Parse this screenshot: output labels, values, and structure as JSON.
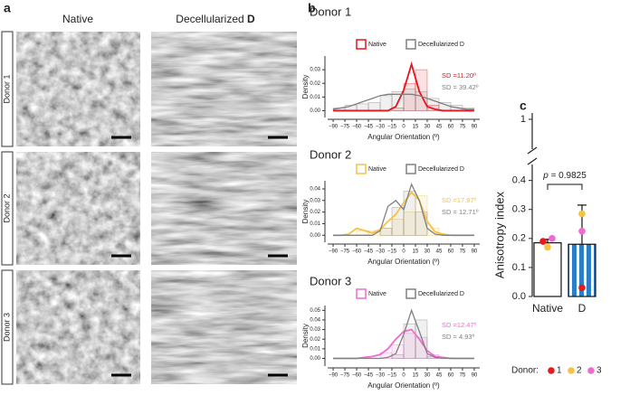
{
  "panel_labels": [
    "a",
    "b",
    "c"
  ],
  "panel_a": {
    "columns": [
      "Native",
      "Decellularized",
      "D"
    ],
    "rows": [
      "Donor 1",
      "Donor 2",
      "Donor 3"
    ]
  },
  "chart_data": [
    {
      "type": "density",
      "title": "Donor 1",
      "xlabel": "Angular Orientation (º)",
      "ylabel": "Density",
      "x": [
        -90,
        -80,
        -70,
        -60,
        -50,
        -40,
        -30,
        -20,
        -10,
        0,
        10,
        20,
        30,
        40,
        50,
        60,
        70,
        80,
        90
      ],
      "bins": [
        -90,
        -75,
        -60,
        -45,
        -30,
        -15,
        0,
        15,
        30,
        45,
        60,
        75,
        90
      ],
      "series": [
        {
          "name": "Native",
          "color": "#e8141c",
          "values": [
            0,
            0,
            0,
            0,
            0,
            0,
            0,
            0,
            0.003,
            0.015,
            0.034,
            0.014,
            0.003,
            0.001,
            0,
            0,
            0,
            0,
            0
          ],
          "hist": [
            0,
            0,
            0,
            0,
            0,
            0.002,
            0.02,
            0.03,
            0.004,
            0,
            0,
            0
          ]
        },
        {
          "name": "Decellularized D",
          "color": "#808080",
          "values": [
            0.001,
            0.002,
            0.003,
            0.005,
            0.007,
            0.009,
            0.011,
            0.012,
            0.012,
            0.012,
            0.012,
            0.011,
            0.009,
            0.007,
            0.005,
            0.003,
            0.002,
            0.001,
            0.001
          ],
          "hist": [
            0.002,
            0.004,
            0.005,
            0.006,
            0.011,
            0.014,
            0.016,
            0.014,
            0.009,
            0.006,
            0.004,
            0.002
          ]
        }
      ],
      "annotations": [
        {
          "text": "SD =11.20º",
          "color": "#e8141c"
        },
        {
          "text": "SD = 39.42º",
          "color": "#808080"
        }
      ],
      "xlim": [
        -97,
        97
      ],
      "ylim": [
        -0.005,
        0.04
      ],
      "xticks": [
        {
          "value": -90,
          "label": "−90"
        },
        {
          "value": -75,
          "label": "−75"
        },
        {
          "value": -60,
          "label": "−60"
        },
        {
          "value": -45,
          "label": "−45"
        },
        {
          "value": -30,
          "label": "−30"
        },
        {
          "value": -15,
          "label": "−15"
        },
        0,
        15,
        30,
        45,
        60,
        75,
        90
      ],
      "yticks": [
        {
          "value": 0,
          "label": "0.00"
        },
        {
          "value": 0.01,
          "label": "0.01"
        },
        {
          "value": 0.02,
          "label": "0.02"
        },
        {
          "value": 0.03,
          "label": "0.03"
        }
      ]
    },
    {
      "type": "density",
      "title": "Donor 2",
      "xlabel": "Angular Orientation (º)",
      "ylabel": "Density",
      "x": [
        -90,
        -80,
        -70,
        -60,
        -50,
        -40,
        -30,
        -20,
        -10,
        0,
        10,
        20,
        30,
        40,
        50,
        60,
        70,
        80,
        90
      ],
      "bins": [
        -90,
        -75,
        -60,
        -45,
        -30,
        -15,
        0,
        15,
        30,
        45,
        60,
        75,
        90
      ],
      "series": [
        {
          "name": "Native",
          "color": "#f5c242",
          "values": [
            0,
            0,
            0.001,
            0.006,
            0.004,
            0.002,
            0.005,
            0.012,
            0.018,
            0.028,
            0.037,
            0.03,
            0.012,
            0.003,
            0.001,
            0,
            0,
            0,
            0
          ],
          "hist": [
            0,
            0,
            0.004,
            0.004,
            0.006,
            0.014,
            0.02,
            0.034,
            0.006,
            0,
            0,
            0
          ]
        },
        {
          "name": "Decellularized D",
          "color": "#808080",
          "values": [
            0,
            0,
            0,
            0,
            0,
            0,
            0.004,
            0.025,
            0.03,
            0.022,
            0.044,
            0.03,
            0.006,
            0.001,
            0,
            0,
            0,
            0,
            0
          ],
          "hist": [
            0,
            0,
            0,
            0,
            0.006,
            0.024,
            0.038,
            0.02,
            0,
            0,
            0,
            0
          ]
        }
      ],
      "annotations": [
        {
          "text": "SD =17.97º",
          "color": "#f5c242"
        },
        {
          "text": "SD = 12.71º",
          "color": "#808080"
        }
      ],
      "xlim": [
        -97,
        97
      ],
      "ylim": [
        -0.006,
        0.047
      ],
      "xticks": [
        {
          "value": -90,
          "label": "−90"
        },
        {
          "value": -75,
          "label": "−75"
        },
        {
          "value": -60,
          "label": "−60"
        },
        {
          "value": -45,
          "label": "−45"
        },
        {
          "value": -30,
          "label": "−30"
        },
        {
          "value": -15,
          "label": "−15"
        },
        0,
        15,
        30,
        45,
        60,
        75,
        90
      ],
      "yticks": [
        {
          "value": 0,
          "label": "0.00"
        },
        {
          "value": 0.01,
          "label": "0.01"
        },
        {
          "value": 0.02,
          "label": "0.02"
        },
        {
          "value": 0.03,
          "label": "0.03"
        },
        {
          "value": 0.04,
          "label": "0.04"
        }
      ]
    },
    {
      "type": "density",
      "title": "Donor 3",
      "xlabel": "Angular Orientation (º)",
      "ylabel": "Density",
      "x": [
        -90,
        -80,
        -70,
        -60,
        -50,
        -40,
        -30,
        -20,
        -10,
        0,
        10,
        20,
        30,
        40,
        50,
        60,
        70,
        80,
        90
      ],
      "bins": [
        -90,
        -75,
        -60,
        -45,
        -30,
        -15,
        0,
        15,
        30,
        45,
        60,
        75,
        90
      ],
      "series": [
        {
          "name": "Native",
          "color": "#ef6bd0",
          "values": [
            0,
            0,
            0,
            0,
            0.001,
            0.002,
            0.004,
            0.01,
            0.02,
            0.028,
            0.03,
            0.02,
            0.008,
            0.002,
            0.001,
            0,
            0,
            0,
            0
          ],
          "hist": [
            0,
            0,
            0,
            0,
            0.006,
            0.014,
            0.026,
            0.022,
            0.004,
            0,
            0,
            0
          ]
        },
        {
          "name": "Decellularized D",
          "color": "#808080",
          "values": [
            0,
            0,
            0,
            0,
            0,
            0,
            0,
            0.001,
            0.005,
            0.025,
            0.05,
            0.028,
            0.005,
            0.001,
            0,
            0,
            0,
            0,
            0
          ],
          "hist": [
            0,
            0,
            0,
            0,
            0,
            0.004,
            0.036,
            0.04,
            0.002,
            0,
            0,
            0
          ]
        }
      ],
      "annotations": [
        {
          "text": "SD =12.47º",
          "color": "#ef6bd0"
        },
        {
          "text": "SD = 4.93º",
          "color": "#808080"
        }
      ],
      "xlim": [
        -97,
        97
      ],
      "ylim": [
        -0.008,
        0.055
      ],
      "xticks": [
        {
          "value": -90,
          "label": "−90"
        },
        {
          "value": -75,
          "label": "−75"
        },
        {
          "value": -60,
          "label": "−60"
        },
        {
          "value": -45,
          "label": "−45"
        },
        {
          "value": -30,
          "label": "−30"
        },
        {
          "value": -15,
          "label": "−15"
        },
        0,
        15,
        30,
        45,
        60,
        75,
        90
      ],
      "yticks": [
        {
          "value": 0,
          "label": "0.00"
        },
        {
          "value": 0.01,
          "label": "0.01"
        },
        {
          "value": 0.02,
          "label": "0.02"
        },
        {
          "value": 0.03,
          "label": "0.03"
        },
        {
          "value": 0.04,
          "label": "0.04"
        },
        {
          "value": 0.05,
          "label": "0.05"
        }
      ]
    },
    {
      "type": "bar",
      "ylabel": "Anisotropy index",
      "categories": [
        "Native",
        "D"
      ],
      "values": [
        0.185,
        0.18
      ],
      "errors": [
        0.012,
        0.135
      ],
      "colors": [
        "#ffffff",
        "#2a7fc8"
      ],
      "ylim": [
        0,
        0.43
      ],
      "yticks": [
        {
          "value": 0,
          "label": "0.0"
        },
        {
          "value": 0.1,
          "label": "0.1"
        },
        {
          "value": 0.2,
          "label": "0.2"
        },
        {
          "value": 0.3,
          "label": "0.3"
        },
        {
          "value": 0.4,
          "label": "0.4"
        }
      ],
      "upper_yticks": [
        1
      ],
      "p_label": "p",
      "p_text": "= 0.9825",
      "legend_title": "Donor:",
      "series": [
        {
          "name": "1",
          "color": "#e41a1c",
          "values": [
            0.19,
            0.03
          ]
        },
        {
          "name": "2",
          "color": "#f5c242",
          "values": [
            0.17,
            0.285
          ]
        },
        {
          "name": "3",
          "color": "#ef6bd0",
          "values": [
            0.2,
            0.225
          ]
        }
      ]
    }
  ]
}
